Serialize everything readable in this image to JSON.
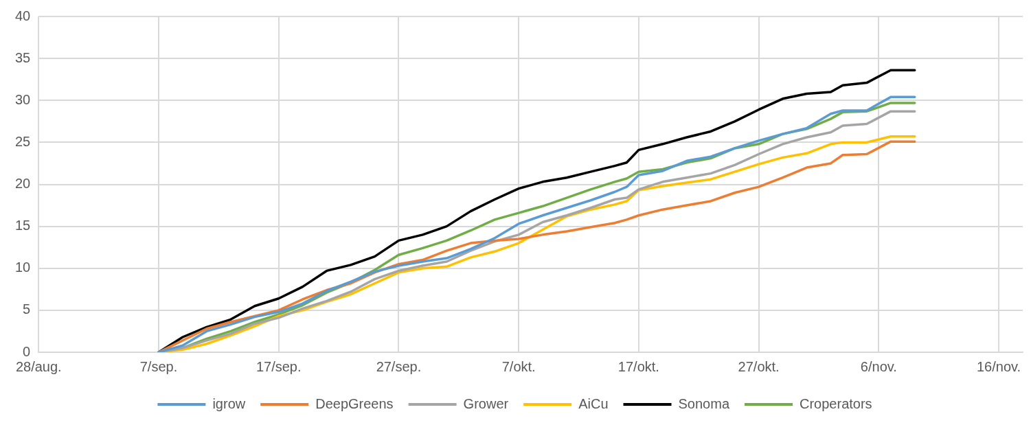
{
  "chart_data": {
    "type": "line",
    "x": [
      "--09-07",
      "--09-09",
      "--09-11",
      "--09-13",
      "--09-15",
      "--09-17",
      "--09-19",
      "--09-21",
      "--09-23",
      "--09-25",
      "--09-27",
      "--09-29",
      "--10-01",
      "--10-03",
      "--10-05",
      "--10-07",
      "--10-09",
      "--10-11",
      "--10-13",
      "--10-15",
      "--10-16",
      "--10-17",
      "--10-19",
      "--10-21",
      "--10-23",
      "--10-25",
      "--10-27",
      "--10-29",
      "--10-31",
      "--11-02",
      "--11-03",
      "--11-05",
      "--11-07",
      "--11-09"
    ],
    "series": [
      {
        "name": "igrow",
        "color": "#5b9bd5",
        "values": [
          0,
          0.8,
          2.5,
          3.3,
          4.2,
          4.8,
          5.8,
          7.3,
          8.4,
          9.6,
          10.3,
          10.8,
          11.2,
          12.3,
          13.6,
          15.3,
          16.3,
          17.2,
          18.1,
          19.1,
          19.7,
          21.1,
          21.6,
          22.8,
          23.3,
          24.3,
          25.2,
          26.0,
          26.7,
          28.4,
          28.8,
          28.8,
          30.4,
          30.4
        ]
      },
      {
        "name": "DeepGreens",
        "color": "#ed7d31",
        "values": [
          0,
          1.4,
          2.8,
          3.6,
          4.3,
          5.0,
          6.3,
          7.4,
          8.2,
          9.5,
          10.5,
          11.0,
          12.1,
          13.0,
          13.3,
          13.5,
          14.0,
          14.4,
          14.9,
          15.4,
          15.8,
          16.3,
          17.0,
          17.5,
          18.0,
          19.0,
          19.7,
          20.8,
          22.0,
          22.5,
          23.5,
          23.6,
          25.1,
          25.1
        ]
      },
      {
        "name": "Grower",
        "color": "#a5a5a5",
        "values": [
          0,
          0.5,
          1.4,
          2.2,
          3.4,
          4.1,
          5.2,
          6.1,
          7.2,
          8.7,
          9.7,
          10.3,
          10.8,
          12.1,
          13.2,
          14.0,
          15.5,
          16.3,
          17.2,
          18.2,
          18.4,
          19.4,
          20.3,
          20.8,
          21.3,
          22.3,
          23.6,
          24.8,
          25.6,
          26.2,
          27.0,
          27.2,
          28.7,
          28.7
        ]
      },
      {
        "name": "AiCu",
        "color": "#ffc000",
        "values": [
          0,
          0.3,
          1.0,
          2.0,
          3.1,
          4.3,
          5.0,
          6.0,
          6.9,
          8.2,
          9.5,
          10.0,
          10.2,
          11.3,
          12.0,
          13.0,
          14.6,
          16.2,
          17.0,
          17.6,
          18.0,
          19.3,
          19.8,
          20.2,
          20.6,
          21.5,
          22.4,
          23.2,
          23.7,
          24.8,
          25.0,
          25.0,
          25.7,
          25.7
        ]
      },
      {
        "name": "Sonoma",
        "color": "#000000",
        "values": [
          0,
          1.8,
          3.0,
          3.9,
          5.5,
          6.4,
          7.8,
          9.7,
          10.4,
          11.4,
          13.3,
          14.0,
          15.0,
          16.8,
          18.2,
          19.5,
          20.3,
          20.8,
          21.5,
          22.2,
          22.6,
          24.1,
          24.8,
          25.6,
          26.3,
          27.5,
          28.9,
          30.2,
          30.8,
          31.0,
          31.8,
          32.1,
          33.6,
          33.6
        ]
      },
      {
        "name": "Croperators",
        "color": "#70ad47",
        "values": [
          0,
          0.5,
          1.6,
          2.5,
          3.6,
          4.5,
          5.6,
          7.1,
          8.3,
          9.8,
          11.6,
          12.4,
          13.3,
          14.5,
          15.8,
          16.6,
          17.4,
          18.4,
          19.4,
          20.3,
          20.7,
          21.5,
          21.8,
          22.6,
          23.1,
          24.3,
          24.8,
          26.0,
          26.6,
          27.8,
          28.6,
          28.7,
          29.7,
          29.7
        ]
      }
    ],
    "xlim": [
      "--08-28",
      "--11-18"
    ],
    "xticks": [
      {
        "value": "--08-28",
        "label": "28/aug."
      },
      {
        "value": "--09-07",
        "label": "7/sep."
      },
      {
        "value": "--09-17",
        "label": "17/sep."
      },
      {
        "value": "--09-27",
        "label": "27/sep."
      },
      {
        "value": "--10-07",
        "label": "7/okt."
      },
      {
        "value": "--10-17",
        "label": "17/okt."
      },
      {
        "value": "--10-27",
        "label": "27/okt."
      },
      {
        "value": "--11-06",
        "label": "6/nov."
      },
      {
        "value": "--11-16",
        "label": "16/nov."
      }
    ],
    "ylim": [
      0,
      40
    ],
    "yticks": [
      0,
      5,
      10,
      15,
      20,
      25,
      30,
      35,
      40
    ],
    "grid": true,
    "legend": "bottom",
    "marker": "none",
    "line_style": "solid"
  }
}
